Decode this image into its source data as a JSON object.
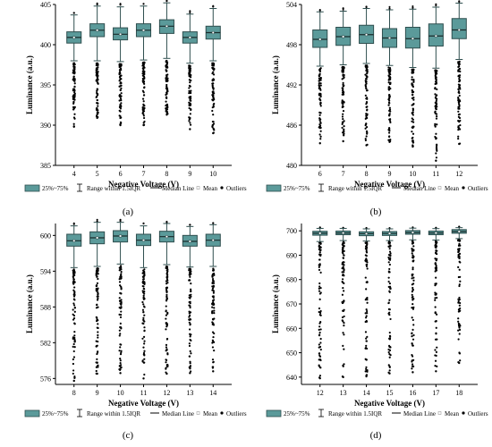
{
  "colors": {
    "box": "#5b9a9a",
    "box_stroke": "#2f4f4f",
    "median": "#1a2a2a",
    "outlier": "#000000",
    "axis": "#000000"
  },
  "legend": {
    "box": "25%~75%",
    "range": "Range within 1.5IQR",
    "median": "Median Line",
    "mean": "Mean",
    "outliers": "Outliers"
  },
  "chart_data": [
    {
      "panel": "(a)",
      "type": "boxplot",
      "xlabel": "Negative Voltage (V)",
      "ylabel": "Luminance (a.u.)",
      "categories": [
        "4",
        "5",
        "6",
        "7",
        "8",
        "9",
        "10"
      ],
      "ylim": [
        385,
        405
      ],
      "yticks": [
        385,
        390,
        395,
        400,
        405
      ],
      "boxes": [
        {
          "whisker_low": 398.0,
          "q1": 400.2,
          "median": 400.9,
          "q3": 401.6,
          "whisker_high": 403.7,
          "outlier_min": 389.8
        },
        {
          "whisker_low": 398.0,
          "q1": 401.0,
          "median": 401.8,
          "q3": 402.6,
          "whisker_high": 404.8,
          "outlier_min": 390.9
        },
        {
          "whisker_low": 397.9,
          "q1": 400.6,
          "median": 401.3,
          "q3": 402.1,
          "whisker_high": 404.7,
          "outlier_min": 390.0
        },
        {
          "whisker_low": 398.1,
          "q1": 401.0,
          "median": 401.8,
          "q3": 402.6,
          "whisker_high": 404.8,
          "outlier_min": 390.0
        },
        {
          "whisker_low": 398.3,
          "q1": 401.4,
          "median": 402.3,
          "q3": 403.1,
          "whisker_high": 405.2,
          "outlier_min": 391.3
        },
        {
          "whisker_low": 397.7,
          "q1": 400.2,
          "median": 400.9,
          "q3": 401.6,
          "whisker_high": 403.8,
          "outlier_min": 389.5
        },
        {
          "whisker_low": 398.0,
          "q1": 400.7,
          "median": 401.5,
          "q3": 402.3,
          "whisker_high": 404.5,
          "outlier_min": 389.0
        }
      ]
    },
    {
      "panel": "(b)",
      "type": "boxplot",
      "xlabel": "Negative Voltage (V)",
      "ylabel": "Luminance (a.u.)",
      "categories": [
        "6",
        "7",
        "8",
        "9",
        "10",
        "11",
        "12"
      ],
      "ylim": [
        480,
        504
      ],
      "yticks": [
        480,
        486,
        492,
        498,
        504
      ],
      "boxes": [
        {
          "whisker_low": 494.8,
          "q1": 497.6,
          "median": 498.8,
          "q3": 500.2,
          "whisker_high": 502.9,
          "outlier_min": 483.3
        },
        {
          "whisker_low": 495.0,
          "q1": 497.9,
          "median": 499.2,
          "q3": 500.6,
          "whisker_high": 503.0,
          "outlier_min": 483.6
        },
        {
          "whisker_low": 495.2,
          "q1": 498.2,
          "median": 499.5,
          "q3": 500.9,
          "whisker_high": 503.4,
          "outlier_min": 483.0
        },
        {
          "whisker_low": 494.9,
          "q1": 497.6,
          "median": 499.0,
          "q3": 500.4,
          "whisker_high": 503.2,
          "outlier_min": 483.5
        },
        {
          "whisker_low": 494.6,
          "q1": 497.5,
          "median": 498.9,
          "q3": 500.6,
          "whisker_high": 503.3,
          "outlier_min": 482.8
        },
        {
          "whisker_low": 494.5,
          "q1": 497.8,
          "median": 499.3,
          "q3": 501.1,
          "whisker_high": 503.6,
          "outlier_min": 480.7
        },
        {
          "whisker_low": 495.8,
          "q1": 498.9,
          "median": 500.2,
          "q3": 501.9,
          "whisker_high": 504.2,
          "outlier_min": 483.2
        }
      ]
    },
    {
      "panel": "(c)",
      "type": "boxplot",
      "xlabel": "Negative Voltage (V)",
      "ylabel": "Luminance (a.u.)",
      "categories": [
        "8",
        "9",
        "10",
        "11",
        "12",
        "13",
        "14"
      ],
      "ylim": [
        575,
        602
      ],
      "yticks": [
        576,
        582,
        588,
        594,
        600
      ],
      "boxes": [
        {
          "whisker_low": 594.6,
          "q1": 598.2,
          "median": 599.1,
          "q3": 600.2,
          "whisker_high": 601.6,
          "outlier_min": 575.6
        },
        {
          "whisker_low": 594.8,
          "q1": 598.6,
          "median": 599.6,
          "q3": 600.6,
          "whisker_high": 602.2,
          "outlier_min": 576.8
        },
        {
          "whisker_low": 595.2,
          "q1": 598.9,
          "median": 599.9,
          "q3": 600.8,
          "whisker_high": 602.2,
          "outlier_min": 576.9
        },
        {
          "whisker_low": 594.6,
          "q1": 598.3,
          "median": 599.2,
          "q3": 600.2,
          "whisker_high": 601.6,
          "outlier_min": 576.0
        },
        {
          "whisker_low": 595.1,
          "q1": 598.9,
          "median": 599.8,
          "q3": 600.7,
          "whisker_high": 602.0,
          "outlier_min": 576.8
        },
        {
          "whisker_low": 594.7,
          "q1": 598.2,
          "median": 599.0,
          "q3": 600.0,
          "whisker_high": 601.5,
          "outlier_min": 576.9
        },
        {
          "whisker_low": 594.8,
          "q1": 598.2,
          "median": 599.2,
          "q3": 600.2,
          "whisker_high": 601.8,
          "outlier_min": 577.2
        }
      ]
    },
    {
      "panel": "(d)",
      "type": "boxplot",
      "xlabel": "Negative Voltage (V)",
      "ylabel": "Luminance (a.u.)",
      "categories": [
        "12",
        "13",
        "14",
        "15",
        "16",
        "17",
        "18"
      ],
      "ylim": [
        637,
        703
      ],
      "yticks": [
        640,
        650,
        660,
        670,
        680,
        690,
        700
      ],
      "boxes": [
        {
          "whisker_low": 695.6,
          "q1": 698.2,
          "median": 699.0,
          "q3": 699.8,
          "whisker_high": 701.0,
          "outlier_min": 639.5
        },
        {
          "whisker_low": 696.0,
          "q1": 698.4,
          "median": 699.1,
          "q3": 699.9,
          "whisker_high": 701.0,
          "outlier_min": 640.0
        },
        {
          "whisker_low": 695.8,
          "q1": 698.0,
          "median": 698.8,
          "q3": 699.6,
          "whisker_high": 700.8,
          "outlier_min": 640.3
        },
        {
          "whisker_low": 696.0,
          "q1": 698.1,
          "median": 698.9,
          "q3": 699.7,
          "whisker_high": 700.8,
          "outlier_min": 641.5
        },
        {
          "whisker_low": 696.3,
          "q1": 698.6,
          "median": 699.3,
          "q3": 700.1,
          "whisker_high": 701.1,
          "outlier_min": 642.0
        },
        {
          "whisker_low": 696.2,
          "q1": 698.4,
          "median": 699.1,
          "q3": 699.9,
          "whisker_high": 700.9,
          "outlier_min": 642.4
        },
        {
          "whisker_low": 696.8,
          "q1": 699.0,
          "median": 699.7,
          "q3": 700.5,
          "whisker_high": 701.3,
          "outlier_min": 645.8
        }
      ]
    }
  ]
}
